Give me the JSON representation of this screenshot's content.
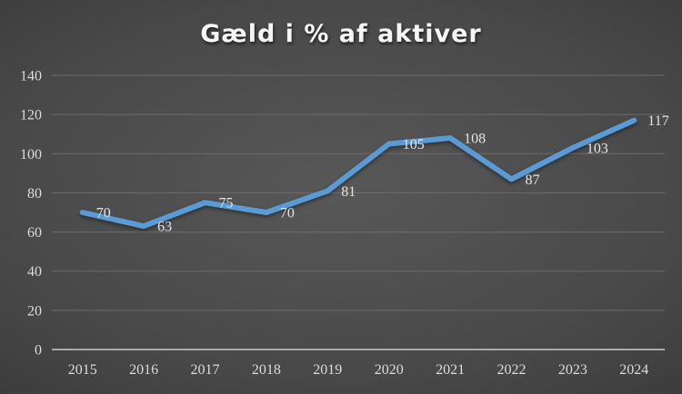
{
  "chart_data": {
    "type": "line",
    "title": "Gæld i % af aktiver",
    "categories": [
      "2015",
      "2016",
      "2017",
      "2018",
      "2019",
      "2020",
      "2021",
      "2022",
      "2023",
      "2024"
    ],
    "series": [
      {
        "name": "Gæld i % af aktiver",
        "values": [
          70,
          63,
          75,
          70,
          81,
          105,
          108,
          87,
          103,
          117
        ],
        "color": "#5b9bd5"
      }
    ],
    "xlabel": "",
    "ylabel": "",
    "ylim": [
      0,
      140
    ],
    "ytick_step": 20,
    "grid": "horizontal",
    "legend": "none",
    "data_labels": "right-of-point",
    "colors": {
      "background_center": "#585858",
      "background_edge": "#262626",
      "gridline": "#6c6c6c",
      "axis_line": "#a9a9a9",
      "tick_text": "#dcdcdc",
      "title_text": "#f5f5f5",
      "series_line": "#5b9bd5"
    }
  }
}
